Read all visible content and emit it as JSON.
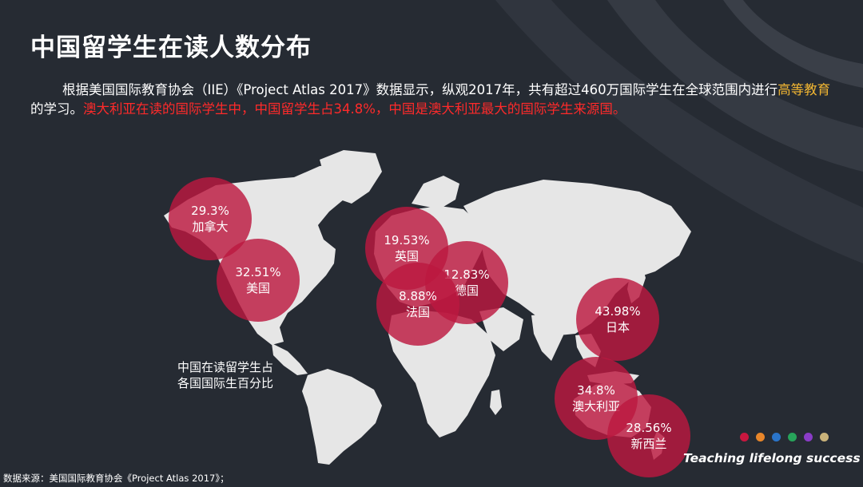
{
  "slide": {
    "title": "中国留学生在读人数分布",
    "paragraph": {
      "part1": "根据美国国际教育协会（IIE）《Project Atlas 2017》数据显示，纵观2017年，共有超过460万国际学生在全球范围内进行",
      "highlight_yellow": "高等教育",
      "part2": "的学习。",
      "highlight_red": "澳大利亚在读的国际学生中，中国留学生占34.8%，中国是澳大利亚最大的国际学生来源国。"
    },
    "map_caption_line1": "中国在读留学生占",
    "map_caption_line2": "各国国际生百分比",
    "bubbles": [
      {
        "pct": "29.3%",
        "country": "加拿大"
      },
      {
        "pct": "32.51%",
        "country": "美国"
      },
      {
        "pct": "19.53%",
        "country": "英国"
      },
      {
        "pct": "12.83%",
        "country": "德国"
      },
      {
        "pct": "8.88%",
        "country": "法国"
      },
      {
        "pct": "43.98%",
        "country": "日本"
      },
      {
        "pct": "34.8%",
        "country": "澳大利亚"
      },
      {
        "pct": "28.56%",
        "country": "新西兰"
      }
    ],
    "brand_dots": [
      "#c8173f",
      "#e8862a",
      "#2a74c9",
      "#27a35a",
      "#8a3cc7",
      "#c9b27a"
    ],
    "tagline": "Teaching lifelong success",
    "source": "数据来源：美国国际教育协会《Project Atlas 2017》；"
  },
  "colors": {
    "background": "#262b33",
    "bubble": "#bc1840",
    "highlight_yellow": "#f2b632",
    "highlight_red": "#ff2a2a",
    "map_land": "#e6e6e6"
  }
}
